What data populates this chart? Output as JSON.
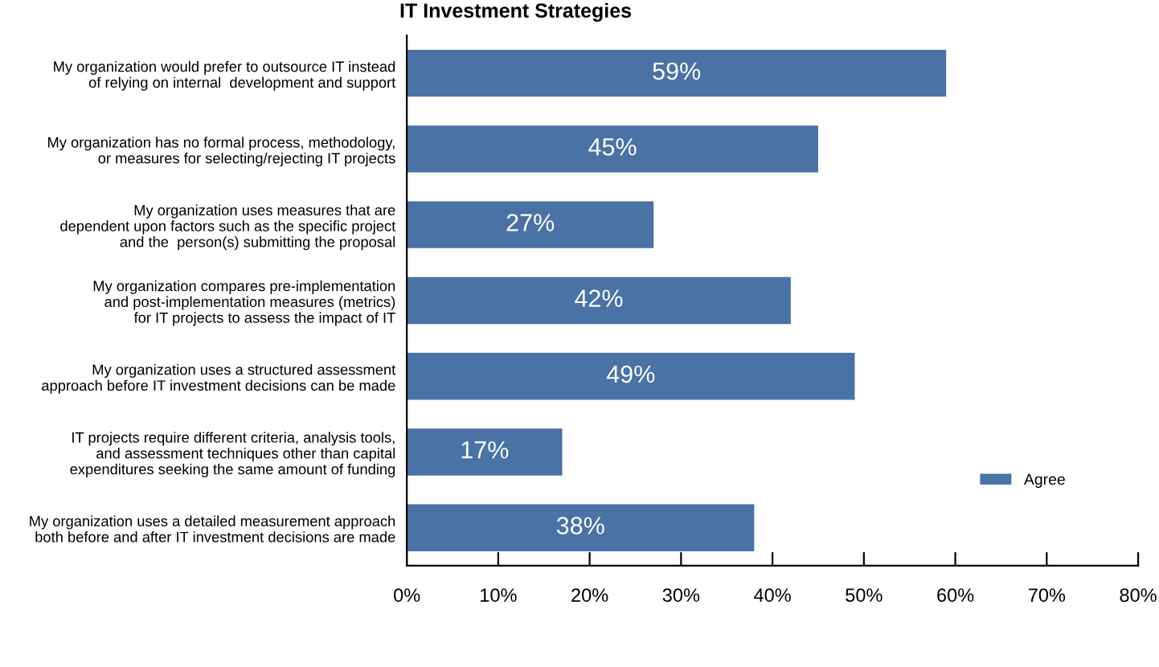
{
  "chart_data": {
    "type": "bar",
    "orientation": "horizontal",
    "title": "IT Investment Strategies",
    "categories": [
      "My organization would prefer to outsource IT instead\nof relying on internal  development and support",
      "My organization has no formal process, methodology,\nor measures for selecting/rejecting IT projects",
      "My organization uses measures that are\ndependent upon factors such as the specific project\nand the  person(s) submitting the proposal",
      "My organization compares pre-implementation\nand post-implementation measures (metrics)\nfor IT projects to assess the impact of IT",
      "My organization uses a structured assessment\napproach before IT investment decisions can be made",
      "IT projects require different criteria, analysis tools,\nand assessment techniques other than capital\nexpenditures seeking the same amount of funding",
      "My organization uses a detailed measurement approach\nboth before and after IT investment decisions are made"
    ],
    "series": [
      {
        "name": "Agree",
        "color": "#4a72a4",
        "values": [
          59,
          45,
          27,
          42,
          49,
          17,
          38
        ],
        "value_labels": [
          "59%",
          "45%",
          "27%",
          "42%",
          "49%",
          "17%",
          "38%"
        ]
      }
    ],
    "xlim": [
      0,
      80
    ],
    "xticks": [
      {
        "value": 0,
        "label": "0%"
      },
      {
        "value": 10,
        "label": "10%"
      },
      {
        "value": 20,
        "label": "20%"
      },
      {
        "value": 30,
        "label": "30%"
      },
      {
        "value": 40,
        "label": "40%"
      },
      {
        "value": 50,
        "label": "50%"
      },
      {
        "value": 60,
        "label": "60%"
      },
      {
        "value": 70,
        "label": "70%"
      },
      {
        "value": 80,
        "label": "80%"
      }
    ],
    "grid": false,
    "legend": "lower right"
  }
}
